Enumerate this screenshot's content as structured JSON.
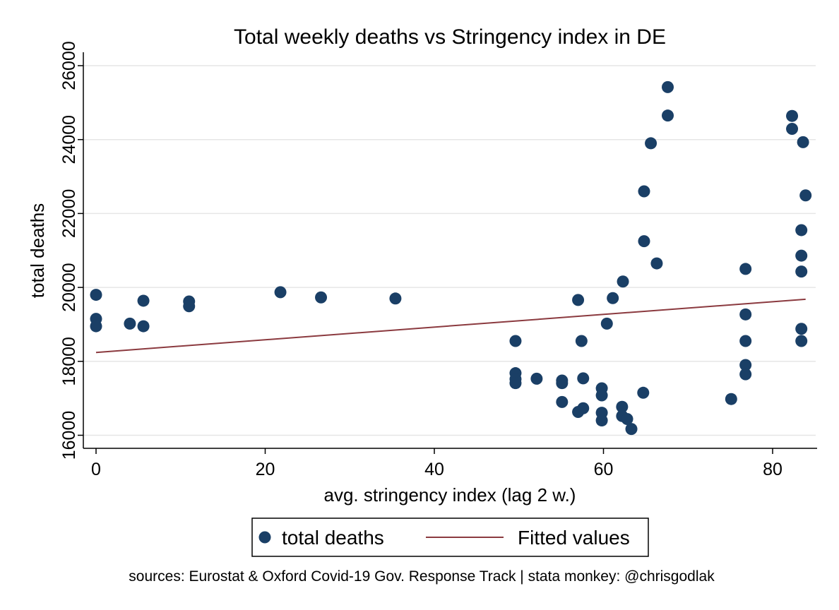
{
  "chart_data": {
    "type": "scatter",
    "title": "Total weekly deaths vs Stringency index in DE",
    "xlabel": "avg. stringency index (lag 2 w.)",
    "ylabel": "total deaths",
    "xlim": [
      0,
      85
    ],
    "ylim": [
      16000,
      26000
    ],
    "xticks": [
      0,
      20,
      40,
      60,
      80
    ],
    "yticks": [
      16000,
      18000,
      20000,
      22000,
      24000,
      26000
    ],
    "grid": true,
    "legend_position": "bottom",
    "series": [
      {
        "name": "total deaths",
        "marker": "circle",
        "color": "#1a3f66",
        "points": [
          [
            0,
            19800
          ],
          [
            0,
            19150
          ],
          [
            0,
            18950
          ],
          [
            4,
            19020
          ],
          [
            5.6,
            19640
          ],
          [
            5.6,
            18950
          ],
          [
            11,
            19620
          ],
          [
            11,
            19490
          ],
          [
            21.8,
            19870
          ],
          [
            26.6,
            19730
          ],
          [
            35.4,
            19700
          ],
          [
            49.6,
            18550
          ],
          [
            49.6,
            17680
          ],
          [
            49.6,
            17520
          ],
          [
            49.6,
            17410
          ],
          [
            52.1,
            17530
          ],
          [
            55.1,
            17480
          ],
          [
            55.1,
            17410
          ],
          [
            55.1,
            16900
          ],
          [
            57,
            19660
          ],
          [
            57.4,
            18550
          ],
          [
            57.6,
            17540
          ],
          [
            57.6,
            16730
          ],
          [
            57,
            16630
          ],
          [
            59.8,
            17270
          ],
          [
            59.8,
            17080
          ],
          [
            59.8,
            16610
          ],
          [
            59.8,
            16400
          ],
          [
            60.4,
            19020
          ],
          [
            61.1,
            19710
          ],
          [
            62.2,
            16770
          ],
          [
            62.3,
            20160
          ],
          [
            62.2,
            16520
          ],
          [
            62.8,
            16440
          ],
          [
            63.3,
            16170
          ],
          [
            64.7,
            17150
          ],
          [
            64.8,
            22600
          ],
          [
            64.8,
            21250
          ],
          [
            65.6,
            23900
          ],
          [
            66.3,
            20650
          ],
          [
            67.6,
            25420
          ],
          [
            67.6,
            24650
          ],
          [
            75.1,
            16980
          ],
          [
            76.8,
            20500
          ],
          [
            76.8,
            19270
          ],
          [
            76.8,
            18550
          ],
          [
            76.8,
            17900
          ],
          [
            76.8,
            17650
          ],
          [
            82.3,
            24640
          ],
          [
            82.3,
            24290
          ],
          [
            83.6,
            23930
          ],
          [
            83.9,
            22490
          ],
          [
            83.4,
            21550
          ],
          [
            83.4,
            20860
          ],
          [
            83.4,
            20430
          ],
          [
            83.4,
            18880
          ],
          [
            83.4,
            18550
          ]
        ]
      },
      {
        "name": "Fitted values",
        "type": "line",
        "color": "#8b3a3f",
        "points": [
          [
            0,
            18240
          ],
          [
            83.9,
            19680
          ]
        ]
      }
    ]
  },
  "caption": "sources: Eurostat & Oxford Covid-19 Gov. Response Track | stata monkey: @chrisgodlak"
}
